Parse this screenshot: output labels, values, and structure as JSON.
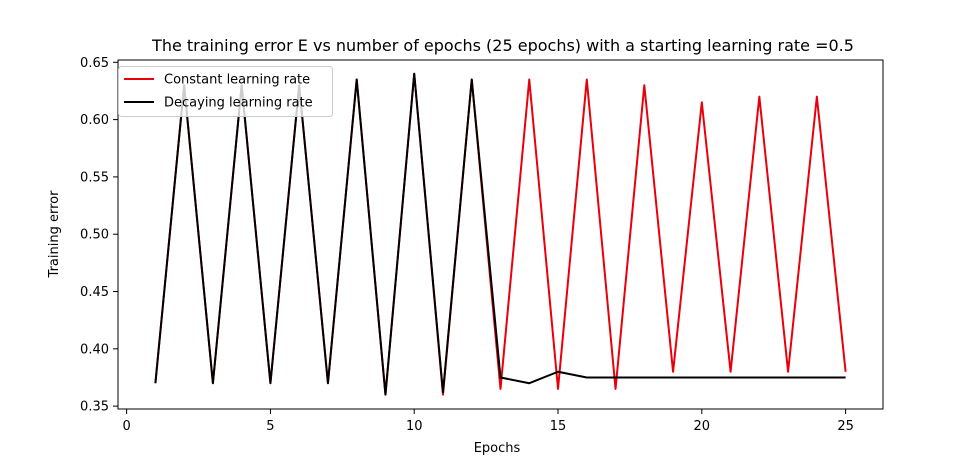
{
  "chart_data": {
    "type": "line",
    "title": "The training error E vs number of epochs (25 epochs) with a starting learning rate =0.5",
    "xlabel": "Epochs",
    "ylabel": "Training error",
    "xlim": [
      -0.3,
      26.3
    ],
    "ylim": [
      0.3475,
      0.652
    ],
    "x_ticks": [
      0,
      5,
      10,
      15,
      20,
      25
    ],
    "x_tick_labels": [
      "0",
      "5",
      "10",
      "15",
      "20",
      "25"
    ],
    "y_ticks": [
      0.35,
      0.4,
      0.45,
      0.5,
      0.55,
      0.6,
      0.65
    ],
    "y_tick_labels": [
      "0.35",
      "0.40",
      "0.45",
      "0.50",
      "0.55",
      "0.60",
      "0.65"
    ],
    "grid": false,
    "legend_position": "top-left",
    "x": [
      1,
      2,
      3,
      4,
      5,
      6,
      7,
      8,
      9,
      10,
      11,
      12,
      13,
      14,
      15,
      16,
      17,
      18,
      19,
      20,
      21,
      22,
      23,
      24,
      25
    ],
    "series": [
      {
        "name": "Constant learning rate",
        "color": "#e8000b",
        "values": [
          0.37,
          0.63,
          0.37,
          0.63,
          0.37,
          0.63,
          0.37,
          0.635,
          0.36,
          0.64,
          0.36,
          0.635,
          0.365,
          0.635,
          0.365,
          0.635,
          0.365,
          0.63,
          0.38,
          0.615,
          0.38,
          0.62,
          0.38,
          0.62,
          0.38
        ]
      },
      {
        "name": "Decaying learning rate",
        "color": "#000000",
        "values": [
          0.37,
          0.63,
          0.37,
          0.63,
          0.37,
          0.63,
          0.37,
          0.635,
          0.36,
          0.64,
          0.362,
          0.635,
          0.375,
          0.37,
          0.38,
          0.375,
          0.375,
          0.375,
          0.375,
          0.375,
          0.375,
          0.375,
          0.375,
          0.375,
          0.375
        ]
      }
    ]
  }
}
